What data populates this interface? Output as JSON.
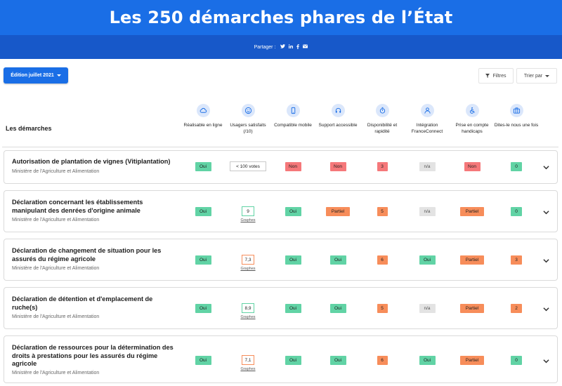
{
  "hero": {
    "title": "Les 250 démarches phares de l’État"
  },
  "share": {
    "label": "Partager :",
    "networks": [
      "twitter-icon",
      "linkedin-icon",
      "facebook-icon",
      "mail-icon"
    ]
  },
  "toolbar": {
    "edition_label": "Édition juillet 2021",
    "filters_label": "Filtres",
    "sort_label": "Trier par"
  },
  "table": {
    "title": "Les démarches",
    "columns": [
      {
        "label": "Réalisable en ligne",
        "icon": "cloud-icon"
      },
      {
        "label": "Usagers satisfaits (/10)",
        "icon": "smiley-icon"
      },
      {
        "label": "Compatible mobile",
        "icon": "mobile-icon"
      },
      {
        "label": "Support accessible",
        "icon": "headset-icon"
      },
      {
        "label": "Disponibilité et rapidité",
        "icon": "stopwatch-icon"
      },
      {
        "label": "Intégration FranceConnect",
        "icon": "user-icon"
      },
      {
        "label": "Prise en compte handicaps",
        "icon": "accessibility-icon"
      },
      {
        "label": "Dites-le nous une fois",
        "icon": "briefcase-icon"
      }
    ],
    "graph_link_label": "Graphes",
    "rows": [
      {
        "name": "Autorisation de plantation de vignes (Vitiplantation)",
        "ministry": "Ministère de l'Agriculture et Alimentation",
        "online": "Oui",
        "satisfaction": "< 100 votes",
        "satisfaction_color": "grey",
        "has_graph": false,
        "mobile": "Non",
        "support": "Non",
        "speed": "3",
        "franceconnect": "n/a",
        "handicap": "Non",
        "dlnuf": "0"
      },
      {
        "name": "Déclaration concernant les établissements manipulant des denrées d'origine animale",
        "ministry": "Ministère de l'Agriculture et Alimentation",
        "online": "Oui",
        "satisfaction": "9",
        "satisfaction_color": "green",
        "has_graph": true,
        "mobile": "Oui",
        "support": "Partiel",
        "speed": "5",
        "franceconnect": "n/a",
        "handicap": "Partiel",
        "dlnuf": "0"
      },
      {
        "name": "Déclaration de changement de situation pour les assurés du régime agricole",
        "ministry": "Ministère de l'Agriculture et Alimentation",
        "online": "Oui",
        "satisfaction": "7,3",
        "satisfaction_color": "orange",
        "has_graph": true,
        "mobile": "Oui",
        "support": "Oui",
        "speed": "6",
        "franceconnect": "Oui",
        "handicap": "Partiel",
        "dlnuf": "3"
      },
      {
        "name": "Déclaration de détention et d'emplacement de ruche(s)",
        "ministry": "Ministère de l'Agriculture et Alimentation",
        "online": "Oui",
        "satisfaction": "8,9",
        "satisfaction_color": "green",
        "has_graph": true,
        "mobile": "Oui",
        "support": "Oui",
        "speed": "5",
        "franceconnect": "n/a",
        "handicap": "Partiel",
        "dlnuf": "2"
      },
      {
        "name": "Déclaration de ressources pour la détermination des droits à prestations pour les assurés du régime agricole",
        "ministry": "Ministère de l'Agriculture et Alimentation",
        "online": "Oui",
        "satisfaction": "7,1",
        "satisfaction_color": "orange",
        "has_graph": true,
        "mobile": "Oui",
        "support": "Oui",
        "speed": "6",
        "franceconnect": "Oui",
        "handicap": "Partiel",
        "dlnuf": "0"
      }
    ]
  },
  "colors": {
    "primary": "#1a6ee6",
    "oui": "#61d3a5",
    "non": "#f5787a",
    "partiel": "#f78d5a",
    "na": "#e3e3e3"
  }
}
